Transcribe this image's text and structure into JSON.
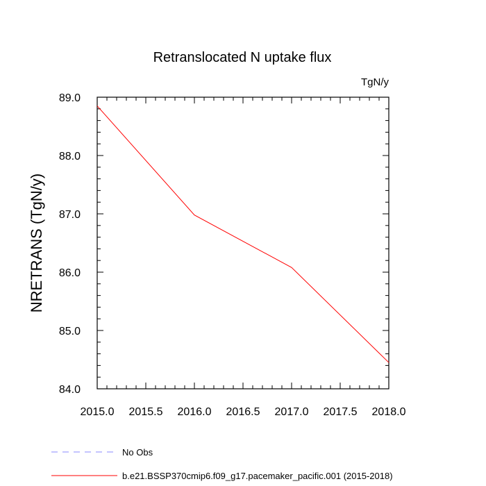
{
  "chart_data": {
    "type": "line",
    "title": "Retranslocated N uptake flux",
    "units_label": "TgN/y",
    "ylabel": "NRETRANS  (TgN/y)",
    "xlabel": "",
    "xlim": [
      2015.0,
      2018.0
    ],
    "ylim": [
      84.0,
      89.0
    ],
    "x_ticks": [
      "2015.0",
      "2015.5",
      "2016.0",
      "2016.5",
      "2017.0",
      "2017.5",
      "2018.0"
    ],
    "y_ticks": [
      "84.0",
      "85.0",
      "86.0",
      "87.0",
      "88.0",
      "89.0"
    ],
    "grid": false,
    "series": [
      {
        "name": "No Obs",
        "color": "#8a8aff",
        "dash": "dashed",
        "x": [],
        "y": []
      },
      {
        "name": "b.e21.BSSP370cmip6.f09_g17.pacemaker_pacific.001 (2015-2018)",
        "color": "#ff0000",
        "dash": "solid",
        "x": [
          2015,
          2016,
          2017,
          2018
        ],
        "y": [
          88.85,
          86.98,
          86.08,
          84.45
        ]
      }
    ],
    "legend_position": "bottom-left"
  }
}
